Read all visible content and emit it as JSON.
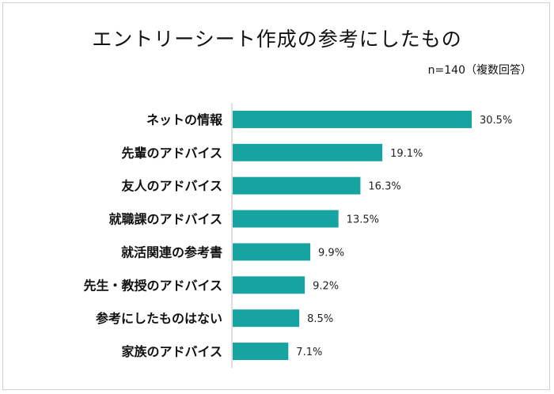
{
  "chart_data": {
    "type": "bar",
    "orientation": "horizontal",
    "title": "エントリーシート作成の参考にしたもの",
    "note": "n=140（複数回答）",
    "categories": [
      "ネットの情報",
      "先輩のアドバイス",
      "友人のアドバイス",
      "就職課のアドバイス",
      "就活関連の参考書",
      "先生・教授のアドバイス",
      "参考にしたものはない",
      "家族のアドバイス"
    ],
    "values": [
      30.5,
      19.1,
      16.3,
      13.5,
      9.9,
      9.2,
      8.5,
      7.1
    ],
    "value_labels": [
      "30.5%",
      "19.1%",
      "16.3%",
      "13.5%",
      "9.9%",
      "9.2%",
      "8.5%",
      "7.1%"
    ],
    "xlim": [
      0,
      30.5
    ],
    "bar_color": "#17a3a0",
    "grid": false,
    "legend": "none"
  }
}
